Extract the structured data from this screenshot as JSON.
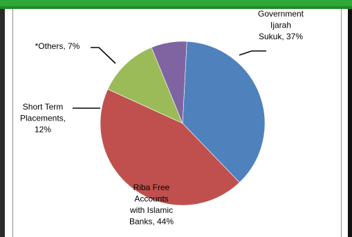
{
  "chart_data": {
    "type": "pie",
    "title": "",
    "legend": "none",
    "start_angle_deg": 87,
    "slices": [
      {
        "label_lines": [
          "Government",
          "Ijarah",
          "Sukuk, 37%"
        ],
        "value": 37,
        "color": "#4f81bd"
      },
      {
        "label_lines": [
          "Riba Free",
          "Accounts",
          "with Islamic",
          "Banks, 44%"
        ],
        "value": 44,
        "color": "#c0504d"
      },
      {
        "label_lines": [
          "Short Term",
          "Placements,",
          "12%"
        ],
        "value": 12,
        "color": "#9bbb59"
      },
      {
        "label_lines": [
          "*Others, 7%"
        ],
        "value": 7,
        "color": "#8064a2"
      }
    ]
  }
}
